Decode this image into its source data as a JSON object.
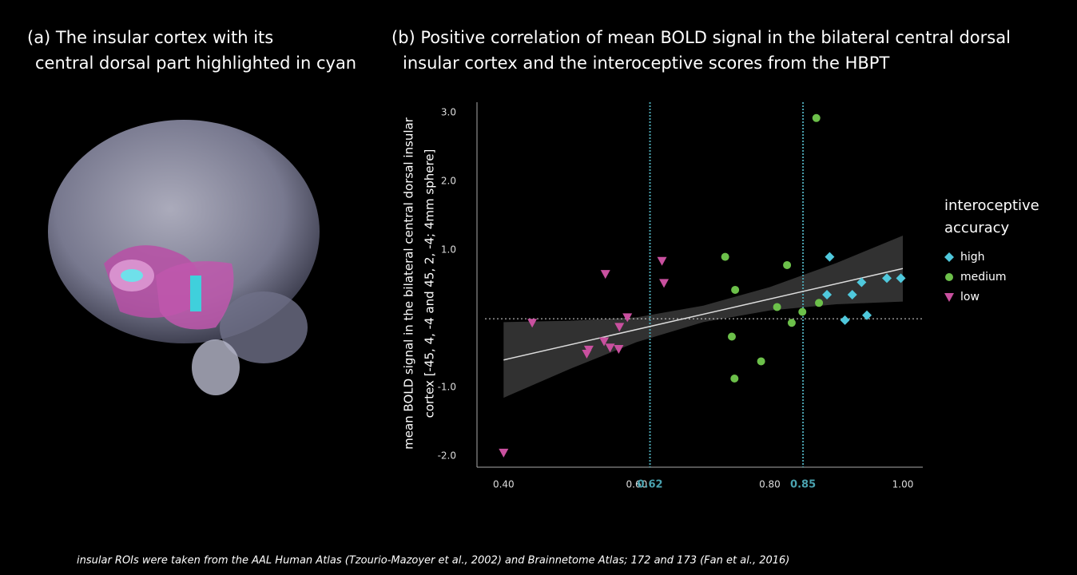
{
  "panel_a": {
    "title": [
      "(a)  The insular cortex with its",
      "central dorsal part highlighted in cyan"
    ]
  },
  "chart_data": {
    "type": "scatter",
    "title": [
      "(b)  Positive correlation of mean BOLD signal in the bilateral central dorsal",
      "insular cortex and the interoceptive scores from the HBPT"
    ],
    "y_label": [
      "mean BOLD signal in the bilateral central dorsal insular",
      "cortex [-45, 4, -4 and 45, 2, -4; 4mm sphere]"
    ],
    "xlim": [
      0.36,
      1.03
    ],
    "ylim": [
      -2.16,
      3.15
    ],
    "xticks": [
      {
        "value": 0.4,
        "label": "0.40"
      },
      {
        "value": 0.6,
        "label": "0.60"
      },
      {
        "value": 0.8,
        "label": "0.80"
      },
      {
        "value": 1,
        "label": "1.00"
      }
    ],
    "yticks": [
      {
        "value": 3,
        "label": "3.0"
      },
      {
        "value": 2,
        "label": "2.0"
      },
      {
        "value": 1,
        "label": "1.0"
      },
      {
        "value": -1,
        "label": "-1.0"
      },
      {
        "value": -2,
        "label": "-2.0"
      }
    ],
    "vlines": [
      0.62,
      0.85
    ],
    "vline_color": "#4aa3b0",
    "hline": 0,
    "fit": {
      "x": [
        0.4,
        1.0
      ],
      "y": [
        -0.6,
        0.73
      ]
    },
    "band": {
      "x": [
        0.4,
        0.5,
        0.6,
        0.7,
        0.8,
        0.9,
        1.0
      ],
      "lower": [
        -1.15,
        -0.73,
        -0.34,
        -0.05,
        0.12,
        0.21,
        0.25
      ],
      "upper": [
        -0.05,
        -0.03,
        0.02,
        0.19,
        0.46,
        0.81,
        1.21
      ]
    },
    "legend_title": [
      "interoceptive",
      "accuracy"
    ],
    "series": [
      {
        "name": "high",
        "color": "#4fc8dc",
        "marker": "diamond",
        "x": [
          0.89,
          0.886,
          0.924,
          0.938,
          0.976,
          0.997,
          0.946,
          0.913
        ],
        "y": [
          0.9,
          0.35,
          0.35,
          0.53,
          0.59,
          0.59,
          0.05,
          -0.02
        ]
      },
      {
        "name": "medium",
        "color": "#6cc04a",
        "marker": "circle",
        "x": [
          0.87,
          0.733,
          0.826,
          0.748,
          0.811,
          0.849,
          0.874,
          0.833,
          0.743,
          0.787,
          0.747
        ],
        "y": [
          2.92,
          0.9,
          0.78,
          0.42,
          0.17,
          0.1,
          0.23,
          -0.06,
          -0.26,
          -0.62,
          -0.87
        ]
      },
      {
        "name": "low",
        "color": "#c9509f",
        "marker": "triangle",
        "x": [
          0.4,
          0.443,
          0.553,
          0.638,
          0.641,
          0.586,
          0.574,
          0.551,
          0.56,
          0.573,
          0.528,
          0.525
        ],
        "y": [
          -1.95,
          -0.06,
          0.65,
          0.84,
          0.52,
          0.02,
          -0.12,
          -0.33,
          -0.42,
          -0.44,
          -0.45,
          -0.51
        ]
      }
    ]
  },
  "footnote": "insular ROIs were taken from the AAL Human Atlas (Tzourio-Mazoyer et al., 2002) and Brainnetome Atlas; 172 and 173 (Fan et al., 2016)"
}
